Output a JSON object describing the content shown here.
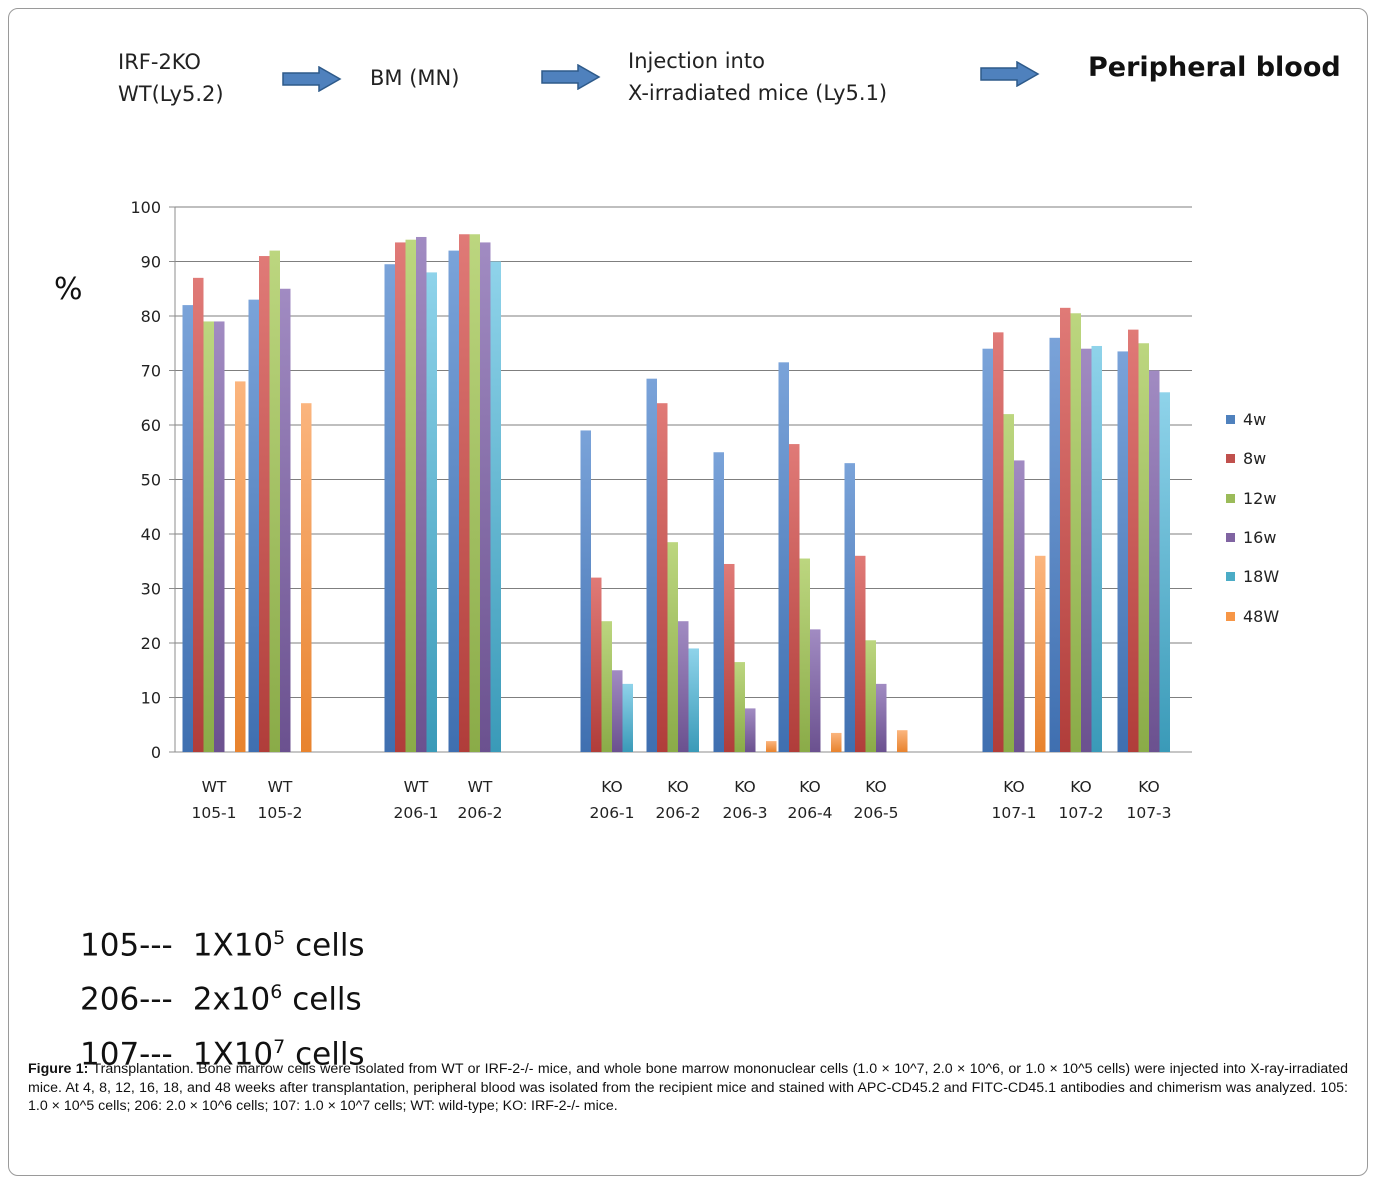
{
  "flow": {
    "step1_line1": "IRF-2KO",
    "step1_line2": "WT(Ly5.2)",
    "step2": "BM (MN)",
    "step3_line1": "Injection into",
    "step3_line2": "X-irradiated mice (Ly5.1)",
    "step4": "Peripheral blood"
  },
  "y_unit_label": "%",
  "colors": {
    "4w": "#4f81bd",
    "8w": "#c0504d",
    "12w": "#9bbb59",
    "16w": "#8064a2",
    "18W": "#4bacc6",
    "48W": "#f79646"
  },
  "chart_data": {
    "type": "bar",
    "ylim": [
      0,
      100
    ],
    "yticks": [
      0,
      10,
      20,
      30,
      40,
      50,
      60,
      70,
      80,
      90,
      100
    ],
    "grid": true,
    "legend_position": "right",
    "categories": [
      {
        "line1": "WT",
        "line2": "105-1"
      },
      {
        "line1": "WT",
        "line2": "105-2"
      },
      {
        "line1": "WT",
        "line2": "206-1"
      },
      {
        "line1": "WT",
        "line2": "206-2"
      },
      {
        "line1": "KO",
        "line2": "206-1"
      },
      {
        "line1": "KO",
        "line2": "206-2"
      },
      {
        "line1": "KO",
        "line2": "206-3"
      },
      {
        "line1": "KO",
        "line2": "206-4"
      },
      {
        "line1": "KO",
        "line2": "206-5"
      },
      {
        "line1": "KO",
        "line2": "107-1"
      },
      {
        "line1": "KO",
        "line2": "107-2"
      },
      {
        "line1": "KO",
        "line2": "107-3"
      }
    ],
    "series": [
      {
        "name": "4w",
        "values": [
          82,
          83,
          89.5,
          92,
          59,
          68.5,
          55,
          71.5,
          53,
          74,
          76,
          73.5
        ]
      },
      {
        "name": "8w",
        "values": [
          87,
          91,
          93.5,
          95,
          32,
          64,
          34.5,
          56.5,
          36,
          77,
          81.5,
          77.5
        ]
      },
      {
        "name": "12w",
        "values": [
          79,
          92,
          94,
          95,
          24,
          38.5,
          16.5,
          35.5,
          20.5,
          62,
          80.5,
          75
        ]
      },
      {
        "name": "16w",
        "values": [
          79,
          85,
          94.5,
          93.5,
          15,
          24,
          8,
          22.5,
          12.5,
          53.5,
          74,
          70
        ]
      },
      {
        "name": "18W",
        "values": [
          null,
          null,
          88,
          90,
          12.5,
          19,
          null,
          null,
          null,
          null,
          74.5,
          66
        ]
      },
      {
        "name": "48W",
        "values": [
          68,
          64,
          null,
          null,
          null,
          null,
          2,
          3.5,
          4,
          36,
          null,
          null
        ]
      }
    ]
  },
  "cells_key": [
    {
      "code": "105---",
      "base": "1X10",
      "exp": "5",
      "unit": "cells"
    },
    {
      "code": "206---",
      "base": "2x10",
      "exp": "6",
      "unit": "cells"
    },
    {
      "code": "107---",
      "base": "1X10",
      "exp": "7",
      "unit": "cells"
    }
  ],
  "caption": {
    "label": "Figure 1:",
    "text": "Transplantation. Bone marrow cells were isolated from WT or IRF-2-/- mice, and whole bone marrow mononuclear cells (1.0 × 10^7, 2.0 × 10^6, or 1.0 × 10^5 cells) were injected into X-ray-irradiated mice. At 4, 8, 12, 16, 18, and 48 weeks after transplantation, peripheral blood was isolated from the recipient mice and stained with APC-CD45.2 and FITC-CD45.1 antibodies and chimerism was analyzed. 105: 1.0 × 10^5 cells; 206: 2.0 × 10^6 cells; 107: 1.0 × 10^7 cells; WT: wild-type; KO: IRF-2-/- mice."
  }
}
